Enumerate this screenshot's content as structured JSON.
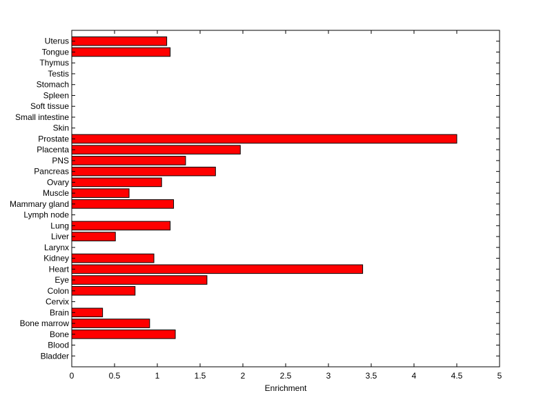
{
  "chart_data": {
    "type": "bar",
    "orientation": "horizontal",
    "title": "",
    "xlabel": "Enrichment",
    "ylabel": "",
    "xlim": [
      0,
      5
    ],
    "xticks": [
      0,
      0.5,
      1,
      1.5,
      2,
      2.5,
      3,
      3.5,
      4,
      4.5,
      5
    ],
    "xtick_labels": [
      "0",
      "0.5",
      "1",
      "1.5",
      "2",
      "2.5",
      "3",
      "3.5",
      "4",
      "4.5",
      "5"
    ],
    "grid": false,
    "legend": "none",
    "bar_color": "#ff0000",
    "edge_color": "#000000",
    "categories": [
      "Bladder",
      "Blood",
      "Bone",
      "Bone marrow",
      "Brain",
      "Cervix",
      "Colon",
      "Eye",
      "Heart",
      "Kidney",
      "Larynx",
      "Liver",
      "Lung",
      "Lymph node",
      "Mammary gland",
      "Muscle",
      "Ovary",
      "Pancreas",
      "PNS",
      "Placenta",
      "Prostate",
      "Skin",
      "Small intestine",
      "Soft tissue",
      "Spleen",
      "Stomach",
      "Testis",
      "Thymus",
      "Tongue",
      "Uterus"
    ],
    "values": [
      0,
      0,
      1.21,
      0.91,
      0.36,
      0,
      0.74,
      1.58,
      3.4,
      0.96,
      0,
      0.51,
      1.15,
      0,
      1.19,
      0.67,
      1.05,
      1.68,
      1.33,
      1.97,
      4.5,
      0,
      0,
      0,
      0,
      0,
      0,
      0,
      1.15,
      1.11
    ]
  }
}
